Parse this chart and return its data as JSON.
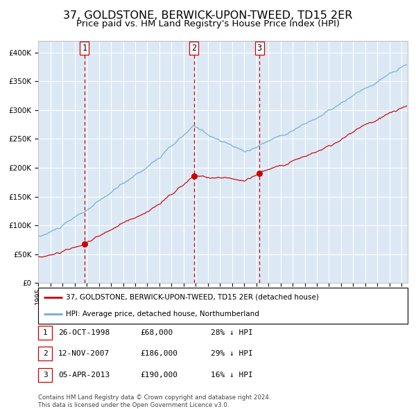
{
  "title": "37, GOLDSTONE, BERWICK-UPON-TWEED, TD15 2ER",
  "subtitle": "Price paid vs. HM Land Registry's House Price Index (HPI)",
  "title_fontsize": 11.5,
  "subtitle_fontsize": 9.5,
  "hpi_color": "#6baed6",
  "property_color": "#cc0000",
  "vline_color": "#cc0000",
  "bg_color": "#dce9f5",
  "grid_color": "#ffffff",
  "sales": [
    {
      "date": "1998-10-26",
      "price": 68000,
      "label": "1"
    },
    {
      "date": "2007-11-12",
      "price": 186000,
      "label": "2"
    },
    {
      "date": "2013-04-05",
      "price": 190000,
      "label": "3"
    }
  ],
  "legend_property": "37, GOLDSTONE, BERWICK-UPON-TWEED, TD15 2ER (detached house)",
  "legend_hpi": "HPI: Average price, detached house, Northumberland",
  "table_rows": [
    {
      "num": "1",
      "date": "26-OCT-1998",
      "price": "£68,000",
      "hpi": "28% ↓ HPI"
    },
    {
      "num": "2",
      "date": "12-NOV-2007",
      "price": "£186,000",
      "hpi": "29% ↓ HPI"
    },
    {
      "num": "3",
      "date": "05-APR-2013",
      "price": "£190,000",
      "hpi": "16% ↓ HPI"
    }
  ],
  "footer": "Contains HM Land Registry data © Crown copyright and database right 2024.\nThis data is licensed under the Open Government Licence v3.0.",
  "ylim": [
    0,
    420000
  ],
  "yticks": [
    0,
    50000,
    100000,
    150000,
    200000,
    250000,
    300000,
    350000,
    400000
  ]
}
